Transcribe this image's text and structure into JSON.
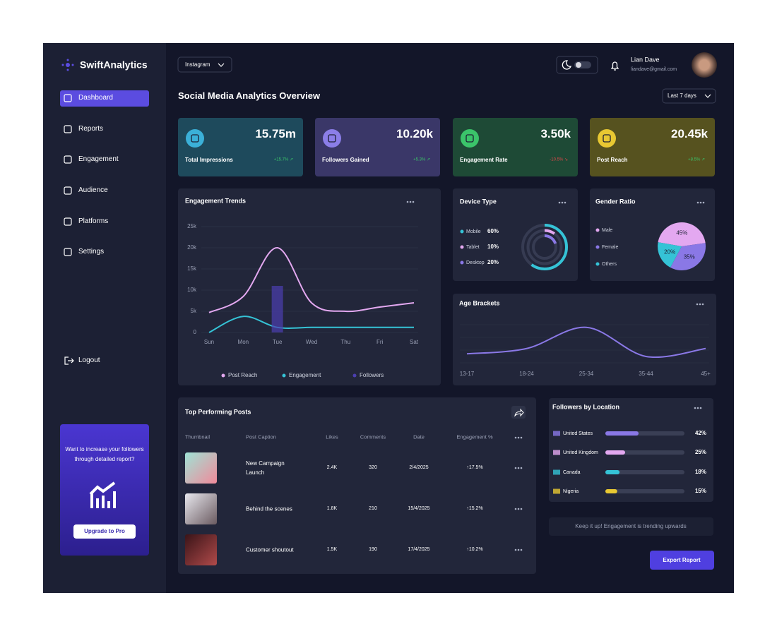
{
  "brand": "SwiftAnalytics",
  "nav": [
    "Dashboard",
    "Reports",
    "Engagement",
    "Audience",
    "Platforms",
    "Settings"
  ],
  "logout": "Logout",
  "promo": {
    "text": "Want to increase your followers through detailed report?",
    "button": "Upgrade to Pro"
  },
  "header": {
    "platform": "Instagram",
    "user_name": "Lian Dave",
    "user_email": "liandave@gmail.com",
    "title": "Social Media Analytics Overview",
    "range": "Last 7 days"
  },
  "kpis": [
    {
      "value": "15.75m",
      "label": "Total Impressions",
      "change": "+15.7% ↗"
    },
    {
      "value": "10.20k",
      "label": "Followers Gained",
      "change": "+5.3% ↗"
    },
    {
      "value": "3.50k",
      "label": "Engagement Rate",
      "change": "-10.5% ↘"
    },
    {
      "value": "20.45k",
      "label": "Post Reach",
      "change": "+8.5% ↗"
    }
  ],
  "chart_data": [
    {
      "type": "line",
      "title": "Engagement Trends",
      "categories": [
        "Sun",
        "Mon",
        "Tue",
        "Wed",
        "Thu",
        "Fri",
        "Sat"
      ],
      "ylim": [
        0,
        25000
      ],
      "yticks": [
        0,
        {
          "value": 5000,
          "label": "5k"
        },
        {
          "value": 10000,
          "label": "10k"
        },
        {
          "value": 15000,
          "label": "15k"
        },
        {
          "value": 20000,
          "label": "20k"
        },
        {
          "value": 25000,
          "label": "25k"
        }
      ],
      "grid": true,
      "series": [
        {
          "name": "Post Reach",
          "color": "#e3a8f0",
          "values": [
            4700,
            8500,
            20000,
            7000,
            5000,
            6000,
            7000
          ]
        },
        {
          "name": "Engagement",
          "color": "#35c3d6",
          "values": [
            0,
            3800,
            1200,
            1200,
            1200,
            1200,
            1200
          ]
        },
        {
          "name": "Followers",
          "color": "#4b3fb0",
          "type": "bar",
          "values": [
            null,
            null,
            11000,
            null,
            null,
            null,
            null
          ]
        }
      ]
    },
    {
      "type": "radial",
      "title": "Device Type",
      "categories": [
        "Mobile",
        "Tablet",
        "Desktop"
      ],
      "values": [
        60,
        10,
        20
      ],
      "value_labels": [
        "60%",
        "10%",
        "20%"
      ],
      "colors": [
        "#35c3d6",
        "#e3a8f0",
        "#8a78e6"
      ]
    },
    {
      "type": "pie",
      "title": "Gender Ratio",
      "categories": [
        "Male",
        "Female",
        "Others"
      ],
      "values": [
        45,
        35,
        20
      ],
      "value_labels": [
        "45%",
        "35%",
        "20%"
      ],
      "colors": [
        "#e3a8f0",
        "#8a78e6",
        "#35c3d6"
      ]
    },
    {
      "type": "line",
      "title": "Age Brackets",
      "categories": [
        "13-17",
        "18-24",
        "25-34",
        "35-44",
        "45+"
      ],
      "ylim": [
        0,
        100
      ],
      "series": [
        {
          "color": "#8a78e6",
          "values": [
            25,
            35,
            75,
            20,
            35
          ]
        }
      ]
    },
    {
      "type": "hbar",
      "title": "Followers by Location",
      "categories": [
        "United States",
        "United Kingdom",
        "Canada",
        "Nigeria"
      ],
      "values": [
        42,
        25,
        18,
        15
      ],
      "value_labels": [
        "42%",
        "25%",
        "18%",
        "15%"
      ],
      "colors": [
        "#8a78e6",
        "#e3a8f0",
        "#35c3d6",
        "#e8c832"
      ],
      "xlim": [
        0,
        100
      ]
    }
  ],
  "posts": {
    "title": "Top Performing Posts",
    "columns": [
      "Thumbnail",
      "Post Caption",
      "Likes",
      "Comments",
      "Date",
      "Engagement %"
    ],
    "rows": [
      [
        "New Campaign Launch",
        "2.4K",
        "320",
        "2/4/2025",
        "↑17.5%"
      ],
      [
        "Behind the scenes",
        "1.8K",
        "210",
        "15/4/2025",
        "↑15.2%"
      ],
      [
        "Customer shoutout",
        "1.5K",
        "190",
        "17/4/2025",
        "↑10.2%"
      ]
    ]
  },
  "footer": {
    "message": "Keep it up! Engagement is trending upwards",
    "button": "Export Report"
  }
}
